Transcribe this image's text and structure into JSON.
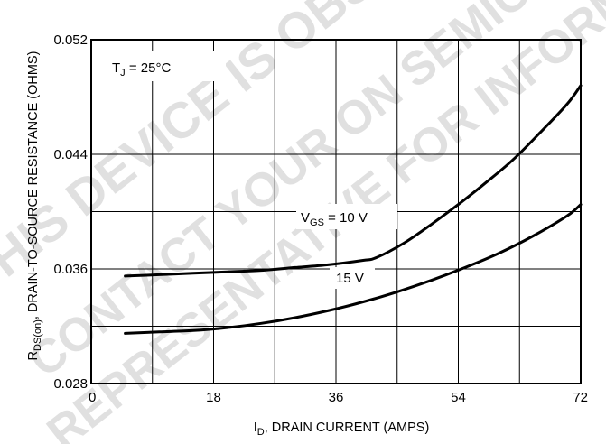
{
  "chart_data": {
    "type": "line",
    "x_ticks": [
      0,
      18,
      36,
      54,
      72
    ],
    "y_ticks": [
      "0.028",
      "0.036",
      "0.044",
      "0.052"
    ],
    "xlim": [
      0,
      72
    ],
    "ylim": [
      0.028,
      0.052
    ],
    "grid": true,
    "xlabel": {
      "main": "I",
      "sub": "D",
      "rest": ", DRAIN CURRENT (AMPS)"
    },
    "ylabel": {
      "main": "R",
      "sub": "DS(on)",
      "rest": ", DRAIN-TO-SOURCE RESISTANCE (OHMS)"
    },
    "annotations": {
      "tj": {
        "main": "T",
        "sub": "J",
        "rest": " =  25°C"
      },
      "vgs10": {
        "main": "V",
        "sub": "GS",
        "rest": " = 10 V"
      },
      "vgs15": "15 V"
    },
    "series": [
      {
        "name": "VGS = 10 V",
        "x": [
          5,
          10,
          15,
          20,
          25,
          30,
          35,
          40,
          42,
          46,
          50,
          54,
          58,
          62,
          66,
          70,
          72
        ],
        "y": [
          0.0355,
          0.0356,
          0.0357,
          0.0358,
          0.0359,
          0.0361,
          0.0363,
          0.0366,
          0.0368,
          0.0378,
          0.0391,
          0.0405,
          0.042,
          0.0436,
          0.0455,
          0.0475,
          0.0488
        ]
      },
      {
        "name": "VGS = 15 V",
        "x": [
          5,
          10,
          15,
          20,
          25,
          30,
          35,
          40,
          45,
          50,
          55,
          60,
          65,
          70,
          72
        ],
        "y": [
          0.0315,
          0.0316,
          0.0317,
          0.0319,
          0.0322,
          0.0326,
          0.0331,
          0.0337,
          0.0344,
          0.0352,
          0.0361,
          0.0371,
          0.0383,
          0.0397,
          0.0405
        ]
      }
    ],
    "watermark": [
      "THIS DEVICE IS OBSOLETE",
      "CONTACT YOUR ON SEMICONDUCTOR",
      "REPRESENTATIVE FOR INFORMATION"
    ]
  }
}
